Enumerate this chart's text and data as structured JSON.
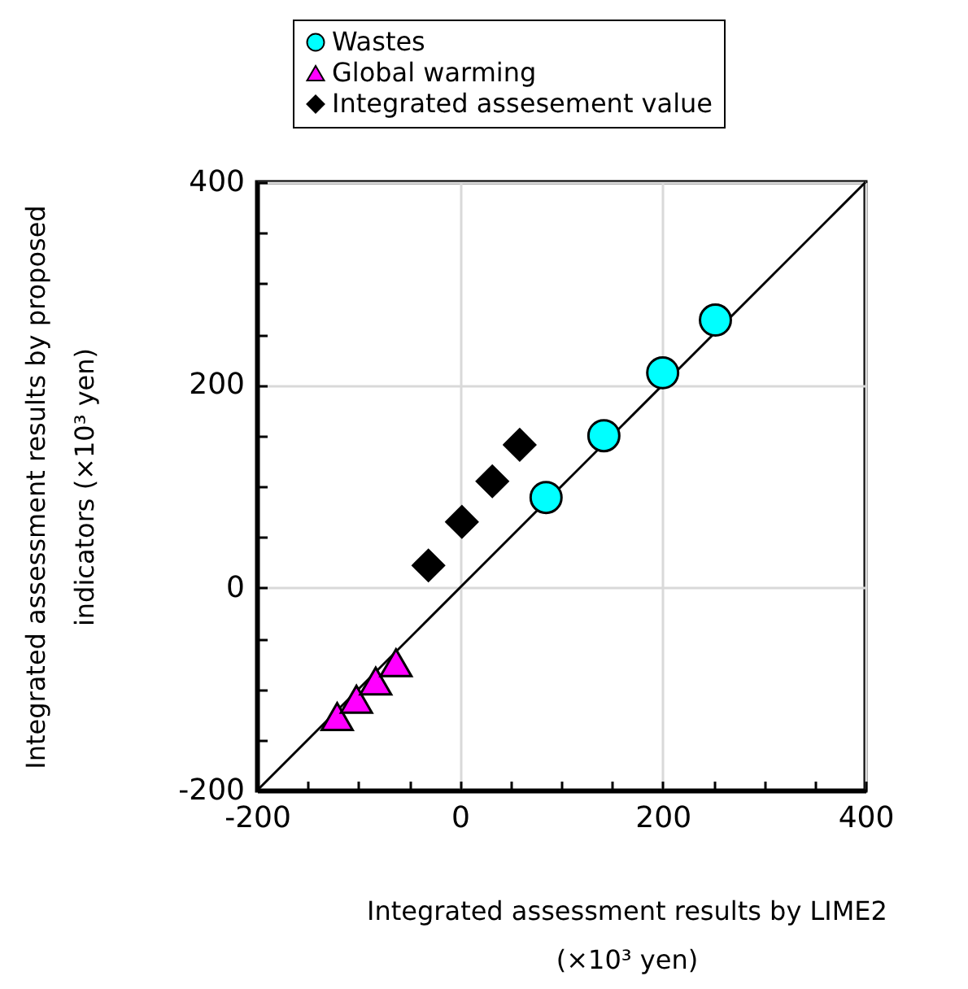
{
  "chart_data": {
    "type": "scatter",
    "xlabel": "Integrated assessment results by LIME2 (×10³ yen)",
    "ylabel": "Integrated assessment results by proposed indicators (×10³ yen)",
    "xlim": [
      -200,
      400
    ],
    "ylim": [
      -200,
      400
    ],
    "xticks": [
      -200,
      {
        "value": -150,
        "label": null
      },
      {
        "value": -100,
        "label": null
      },
      {
        "value": -50,
        "label": null
      },
      0,
      {
        "value": 50,
        "label": null
      },
      {
        "value": 100,
        "label": null
      },
      {
        "value": 150,
        "label": null
      },
      200,
      {
        "value": 250,
        "label": null
      },
      {
        "value": 300,
        "label": null
      },
      {
        "value": 350,
        "label": null
      },
      400
    ],
    "yticks": [
      -200,
      {
        "value": -150,
        "label": null
      },
      {
        "value": -100,
        "label": null
      },
      {
        "value": -50,
        "label": null
      },
      0,
      {
        "value": 50,
        "label": null
      },
      {
        "value": 100,
        "label": null
      },
      {
        "value": 150,
        "label": null
      },
      200,
      {
        "value": 250,
        "label": null
      },
      {
        "value": 300,
        "label": null
      },
      {
        "value": 350,
        "label": null
      },
      400
    ],
    "grid": true,
    "legend": "top",
    "series": [
      {
        "type": "line",
        "color": "#000000",
        "x": [
          -200,
          400
        ],
        "values": [
          -200,
          400
        ]
      },
      {
        "name": "Wastes",
        "type": "scatter",
        "marker": "circle",
        "color": "#00ffff",
        "x": [
          85,
          142,
          200,
          252
        ],
        "values": [
          89,
          150,
          212,
          264
        ]
      },
      {
        "name": "Global warming",
        "type": "scatter",
        "marker": "triangle",
        "color": "#ff00ff",
        "x": [
          -121,
          -102,
          -83,
          -63
        ],
        "values": [
          -127,
          -110,
          -92,
          -74
        ]
      },
      {
        "name": "Integrated assesement value",
        "type": "scatter",
        "marker": "diamond",
        "color": "#000000",
        "x": [
          -31,
          2,
          32,
          59
        ],
        "values": [
          22,
          65,
          105,
          141
        ]
      }
    ]
  }
}
